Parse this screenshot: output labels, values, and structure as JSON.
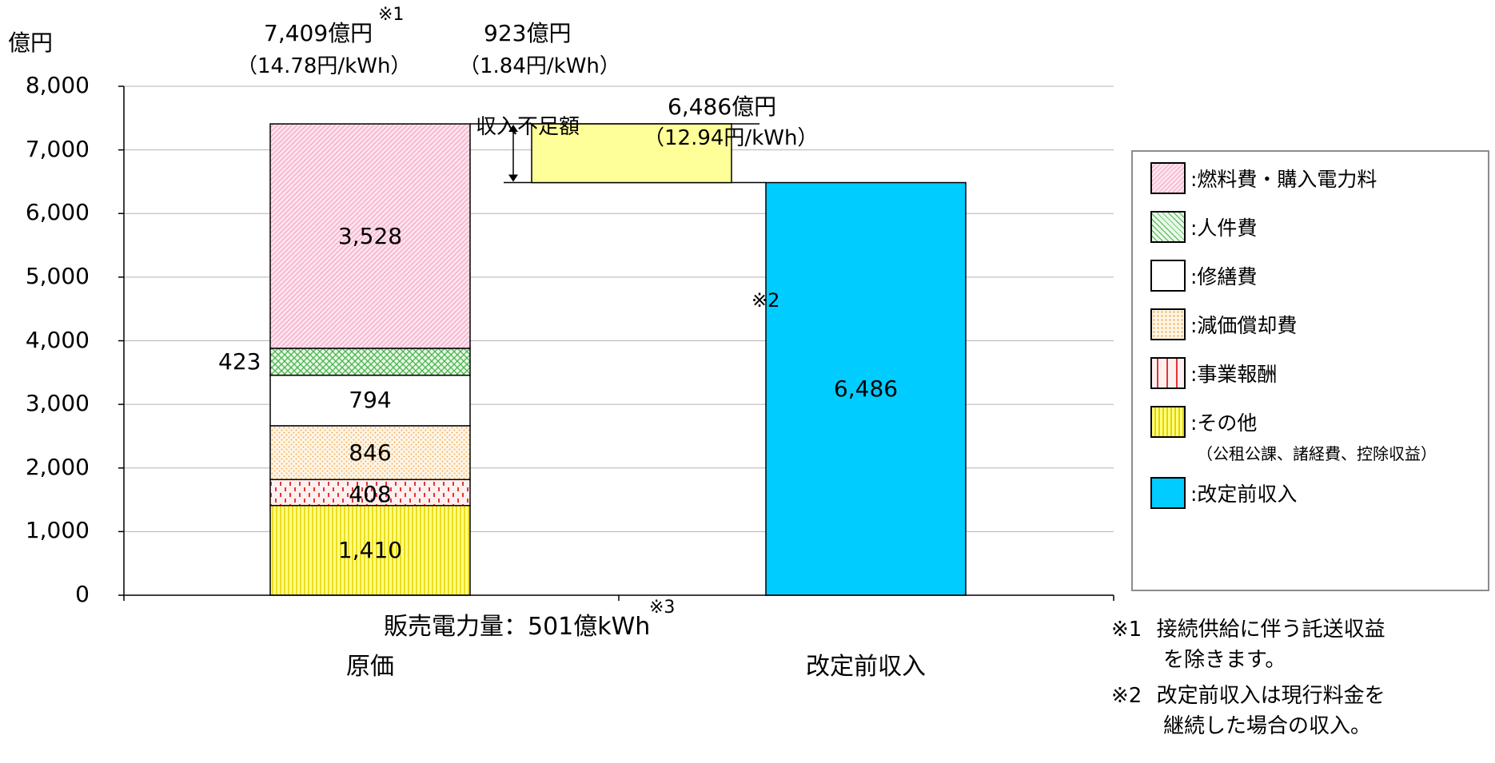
{
  "chart_data": {
    "type": "bar",
    "stacked": true,
    "yunit": "億円",
    "ylim": [
      0,
      8000
    ],
    "yticks": [
      "0",
      "1,000",
      "2,000",
      "3,000",
      "4,000",
      "5,000",
      "6,000",
      "7,000",
      "8,000"
    ],
    "grid": true,
    "legend_position": "right",
    "categories": [
      "原価",
      "改定前収入"
    ],
    "series": [
      {
        "name": ":その他",
        "sub": "（公租公課、諸経費、控除収益）",
        "values": [
          1410,
          0
        ],
        "labels": [
          "1,410",
          ""
        ],
        "color": "#ffff66",
        "pattern": "vlines-yellow"
      },
      {
        "name": ":事業報酬",
        "values": [
          408,
          0
        ],
        "labels": [
          "408",
          ""
        ],
        "color": "#ffe8e8",
        "pattern": "red-dashes"
      },
      {
        "name": ":減価償却費",
        "values": [
          846,
          0
        ],
        "labels": [
          "846",
          ""
        ],
        "color": "#fff2dc",
        "pattern": "orange-dots"
      },
      {
        "name": ":修繕費",
        "values": [
          794,
          0
        ],
        "labels": [
          "794",
          ""
        ],
        "color": "#ffffff",
        "pattern": "none"
      },
      {
        "name": ":人件費",
        "values": [
          423,
          0
        ],
        "labels": [
          "423",
          ""
        ],
        "color": "#e6f5e6",
        "pattern": "green-lattice"
      },
      {
        "name": ":燃料費・購入電力料",
        "values": [
          3528,
          0
        ],
        "labels": [
          "3,528",
          ""
        ],
        "color": "#ffd6e6",
        "pattern": "pink-diag"
      },
      {
        "name": ":改定前収入",
        "values": [
          0,
          6486
        ],
        "labels": [
          "",
          "6,486"
        ],
        "color": "#00ccff",
        "pattern": "none"
      }
    ],
    "totals": [
      {
        "value": "7,409億円",
        "mark": "※1",
        "unit_price": "（14.78円/kWh）"
      },
      {
        "value": "6,486億円",
        "mark": "",
        "unit_price": "（12.94円/kWh）"
      }
    ],
    "shortfall": {
      "amount": "923億円",
      "unit_price": "（1.84円/kWh）",
      "label": "収入不足額"
    },
    "bar_mark": "※2",
    "xlabel": "販売電力量：501億kWh",
    "xlabel_mark": "※3"
  },
  "notes": [
    {
      "mark": "※1",
      "line1": "接続供給に伴う託送収益",
      "line2": "を除きます。"
    },
    {
      "mark": "※2",
      "line1": "改定前収入は現行料金を",
      "line2": "継続した場合の収入。"
    }
  ]
}
